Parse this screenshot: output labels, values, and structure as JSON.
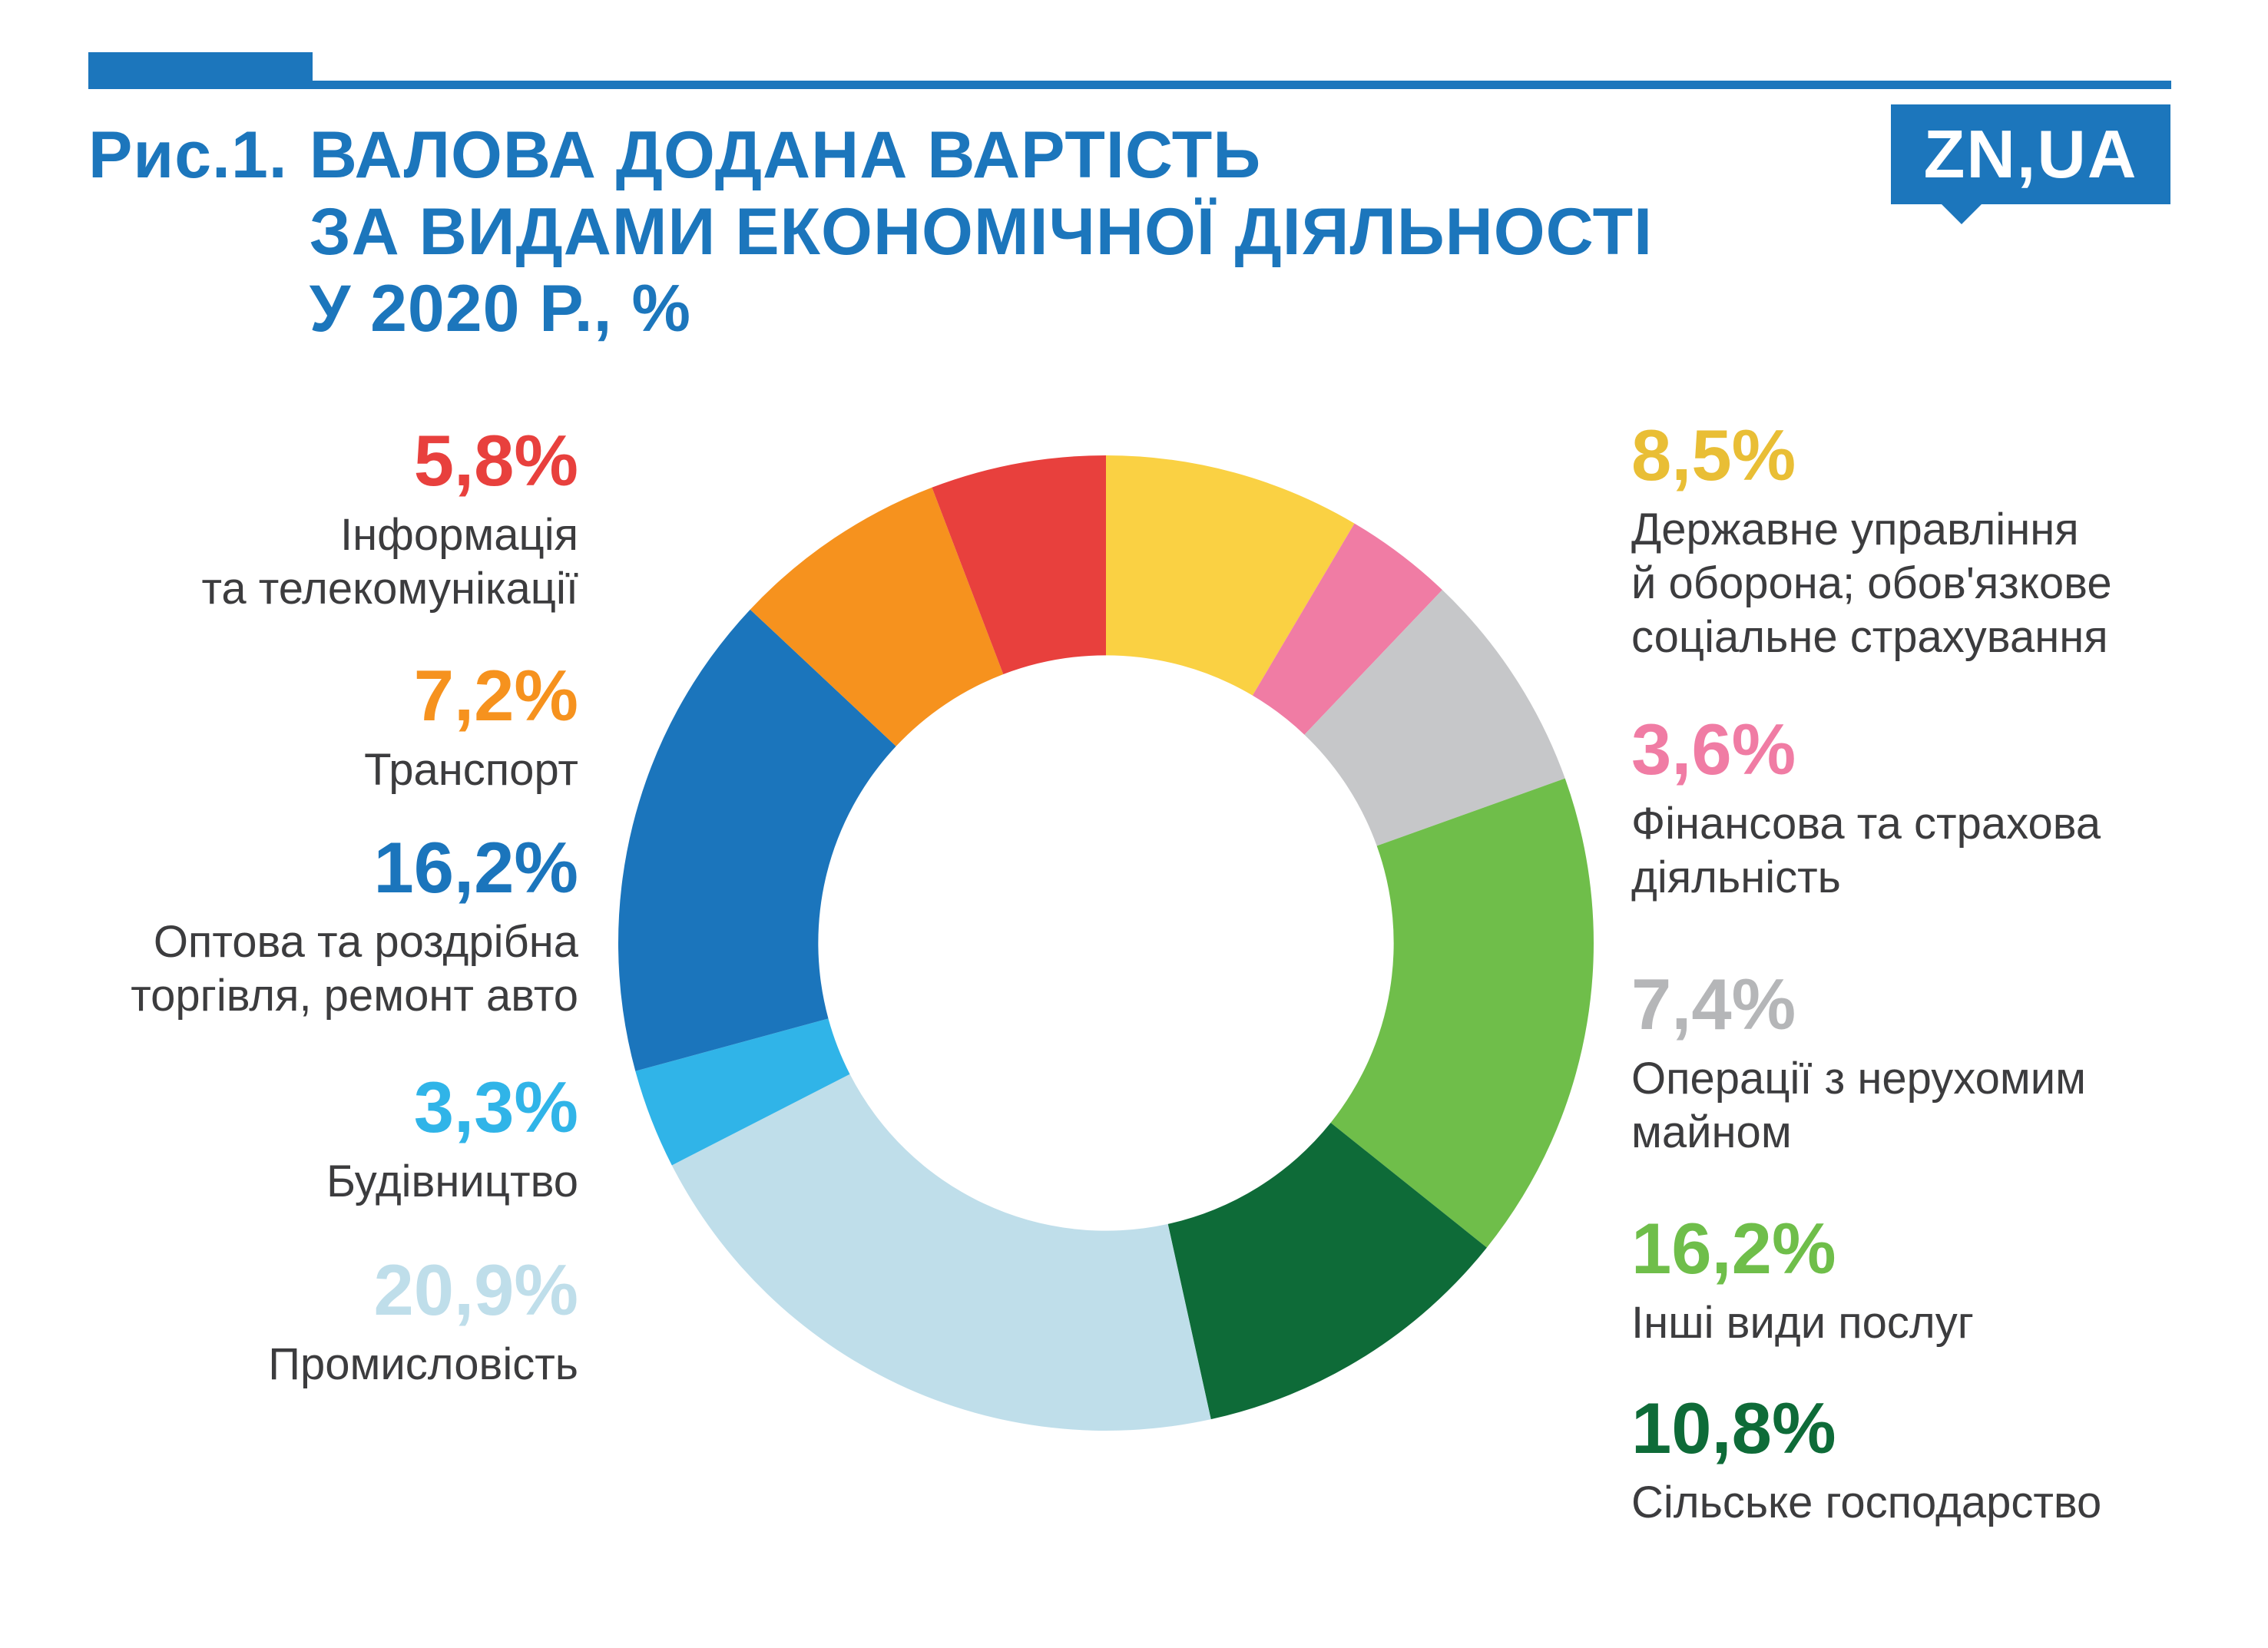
{
  "header": {
    "figure_label": "Рис.1.",
    "title_line1": "ВАЛОВА ДОДАНА ВАРТІСТЬ",
    "title_line2": "ЗА ВИДАМИ ЕКОНОМІЧНОЇ ДІЯЛЬНОСТІ",
    "title_line3": "У 2020 Р., %",
    "accent_color": "#1C76BC",
    "logo_text": "ZN,UA",
    "logo_bg_color": "#1C76BC"
  },
  "chart_data": {
    "type": "pie",
    "variant": "donut",
    "title": "Валова додана вартість за видами економічної діяльності у 2020 р., %",
    "direction": "clockwise",
    "start_angle_deg_from_top": 0,
    "inner_radius_ratio": 0.59,
    "segments": [
      {
        "label": "Державне управління й оборона; обов'язкове соціальне страхування",
        "value": 8.5,
        "display": "8,5%",
        "color": "#FAD143"
      },
      {
        "label": "Фінансова та страхова діяльність",
        "value": 3.6,
        "display": "3,6%",
        "color": "#F07CA4"
      },
      {
        "label": "Операції з нерухомим майном",
        "value": 7.4,
        "display": "7,4%",
        "color": "#C6C7C9"
      },
      {
        "label": "Інші види послуг",
        "value": 16.2,
        "display": "16,2%",
        "color": "#6FBE4A"
      },
      {
        "label": "Сільське господарство",
        "value": 10.8,
        "display": "10,8%",
        "color": "#0E6B38"
      },
      {
        "label": "Промисловість",
        "value": 20.9,
        "display": "20,9%",
        "color": "#BFDEEA"
      },
      {
        "label": "Будівництво",
        "value": 3.3,
        "display": "3,3%",
        "color": "#30B4E8"
      },
      {
        "label": "Оптова та роздрібна торгівля, ремонт авто",
        "value": 16.2,
        "display": "16,2%",
        "color": "#1B75BC"
      },
      {
        "label": "Транспорт",
        "value": 7.2,
        "display": "7,2%",
        "color": "#F6921E"
      },
      {
        "label": "Інформація та телекомунікації",
        "value": 5.8,
        "display": "5,8%",
        "color": "#E8403D"
      }
    ]
  },
  "legend_left": {
    "items": [
      {
        "value": "5,8%",
        "color": "#E8403D",
        "lines": [
          "Інформація",
          "та телекомунікації"
        ]
      },
      {
        "value": "7,2%",
        "color": "#F6921E",
        "lines": [
          "Транспорт"
        ]
      },
      {
        "value": "16,2%",
        "color": "#1B75BC",
        "lines": [
          "Оптова та роздрібна",
          "торгівля, ремонт авто"
        ]
      },
      {
        "value": "3,3%",
        "color": "#30B4E8",
        "lines": [
          "Будівництво"
        ]
      },
      {
        "value": "20,9%",
        "color": "#BFDEEA",
        "lines": [
          "Промисловість"
        ]
      }
    ]
  },
  "legend_right": {
    "items": [
      {
        "value": "8,5%",
        "color": "#E9BE35",
        "lines": [
          "Державне управління",
          "й оборона; обов'язкове",
          "соціальне страхування"
        ]
      },
      {
        "value": "3,6%",
        "color": "#F07CA4",
        "lines": [
          "Фінансова та страхова",
          "діяльність"
        ]
      },
      {
        "value": "7,4%",
        "color": "#B5B6B8",
        "lines": [
          "Операції з нерухомим",
          "майном"
        ]
      },
      {
        "value": "16,2%",
        "color": "#6FBE4A",
        "lines": [
          "Інші види послуг"
        ]
      },
      {
        "value": "10,8%",
        "color": "#0E6B38",
        "lines": [
          "Сільське господарство"
        ]
      }
    ]
  }
}
